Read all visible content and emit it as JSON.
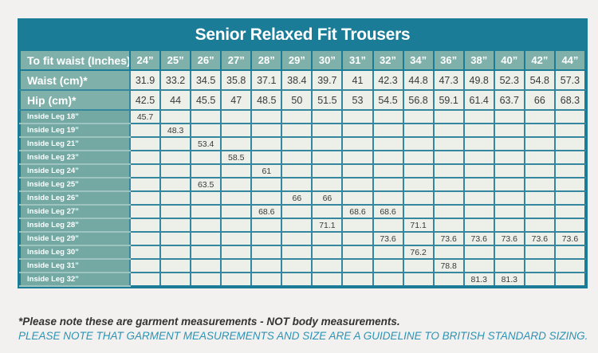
{
  "title": "Senior Relaxed Fit Trousers",
  "table": {
    "header_label": "To fit waist (Inches)",
    "columns": [
      "24”",
      "25”",
      "26”",
      "27”",
      "28”",
      "29”",
      "30”",
      "31”",
      "32”",
      "34”",
      "36”",
      "38”",
      "40”",
      "42”",
      "44”"
    ],
    "rows": [
      {
        "label": "Waist (cm)*",
        "kind": "measure",
        "values": [
          "31.9",
          "33.2",
          "34.5",
          "35.8",
          "37.1",
          "38.4",
          "39.7",
          "41",
          "42.3",
          "44.8",
          "47.3",
          "49.8",
          "52.3",
          "54.8",
          "57.3"
        ]
      },
      {
        "label": "Hip (cm)*",
        "kind": "measure",
        "values": [
          "42.5",
          "44",
          "45.5",
          "47",
          "48.5",
          "50",
          "51.5",
          "53",
          "54.5",
          "56.8",
          "59.1",
          "61.4",
          "63.7",
          "66",
          "68.3"
        ]
      },
      {
        "label": "Inside Leg 18”",
        "kind": "leg",
        "values": [
          "45.7",
          "",
          "",
          "",
          "",
          "",
          "",
          "",
          "",
          "",
          "",
          "",
          "",
          "",
          ""
        ]
      },
      {
        "label": "Inside Leg 19”",
        "kind": "leg",
        "values": [
          "",
          "48.3",
          "",
          "",
          "",
          "",
          "",
          "",
          "",
          "",
          "",
          "",
          "",
          "",
          ""
        ]
      },
      {
        "label": "Inside Leg 21”",
        "kind": "leg",
        "values": [
          "",
          "",
          "53.4",
          "",
          "",
          "",
          "",
          "",
          "",
          "",
          "",
          "",
          "",
          "",
          ""
        ]
      },
      {
        "label": "Inside Leg 23”",
        "kind": "leg",
        "values": [
          "",
          "",
          "",
          "58.5",
          "",
          "",
          "",
          "",
          "",
          "",
          "",
          "",
          "",
          "",
          ""
        ]
      },
      {
        "label": "Inside Leg 24”",
        "kind": "leg",
        "values": [
          "",
          "",
          "",
          "",
          "61",
          "",
          "",
          "",
          "",
          "",
          "",
          "",
          "",
          "",
          ""
        ]
      },
      {
        "label": "Inside Leg 25”",
        "kind": "leg",
        "values": [
          "",
          "",
          "63.5",
          "",
          "",
          "",
          "",
          "",
          "",
          "",
          "",
          "",
          "",
          "",
          ""
        ]
      },
      {
        "label": "Inside Leg 26”",
        "kind": "leg",
        "values": [
          "",
          "",
          "",
          "",
          "",
          "66",
          "66",
          "",
          "",
          "",
          "",
          "",
          "",
          "",
          ""
        ]
      },
      {
        "label": "Inside Leg 27”",
        "kind": "leg",
        "values": [
          "",
          "",
          "",
          "",
          "68.6",
          "",
          "",
          "68.6",
          "68.6",
          "",
          "",
          "",
          "",
          "",
          ""
        ]
      },
      {
        "label": "Inside Leg 28”",
        "kind": "leg",
        "values": [
          "",
          "",
          "",
          "",
          "",
          "",
          "71.1",
          "",
          "",
          "71.1",
          "",
          "",
          "",
          "",
          ""
        ]
      },
      {
        "label": "Inside Leg 29”",
        "kind": "leg",
        "values": [
          "",
          "",
          "",
          "",
          "",
          "",
          "",
          "",
          "73.6",
          "",
          "73.6",
          "73.6",
          "73.6",
          "73.6",
          "73.6"
        ]
      },
      {
        "label": "Inside Leg 30”",
        "kind": "leg",
        "values": [
          "",
          "",
          "",
          "",
          "",
          "",
          "",
          "",
          "",
          "76.2",
          "",
          "",
          "",
          "",
          ""
        ]
      },
      {
        "label": "Inside Leg 31”",
        "kind": "leg",
        "values": [
          "",
          "",
          "",
          "",
          "",
          "",
          "",
          "",
          "",
          "",
          "78.8",
          "",
          "",
          "",
          ""
        ]
      },
      {
        "label": "Inside Leg 32”",
        "kind": "leg",
        "values": [
          "",
          "",
          "",
          "",
          "",
          "",
          "",
          "",
          "",
          "",
          "",
          "81.3",
          "81.3",
          "",
          ""
        ]
      }
    ]
  },
  "footnotes": {
    "line1": "*Please note these are garment measurements - NOT body measurements.",
    "line2": "PLEASE NOTE THAT GARMENT MEASUREMENTS AND SIZE ARE A GUIDELINE TO BRITISH STANDARD SIZING."
  },
  "chart_data": {
    "type": "table",
    "title": "Senior Relaxed Fit Trousers",
    "columns": [
      "24”",
      "25”",
      "26”",
      "27”",
      "28”",
      "29”",
      "30”",
      "31”",
      "32”",
      "34”",
      "36”",
      "38”",
      "40”",
      "42”",
      "44”"
    ],
    "row_header": "To fit waist (Inches)"
  },
  "colors": {
    "title_bar": "#1A7C97",
    "grid": "#3587A0",
    "label_sage": "#80B0AA",
    "leg_label_sage": "#74A9A3",
    "cell_bg": "#EDEFE9",
    "page_bg": "#F2F1EF",
    "footnote_teal": "#2D93B5",
    "text_dark": "#3A3A3A"
  }
}
